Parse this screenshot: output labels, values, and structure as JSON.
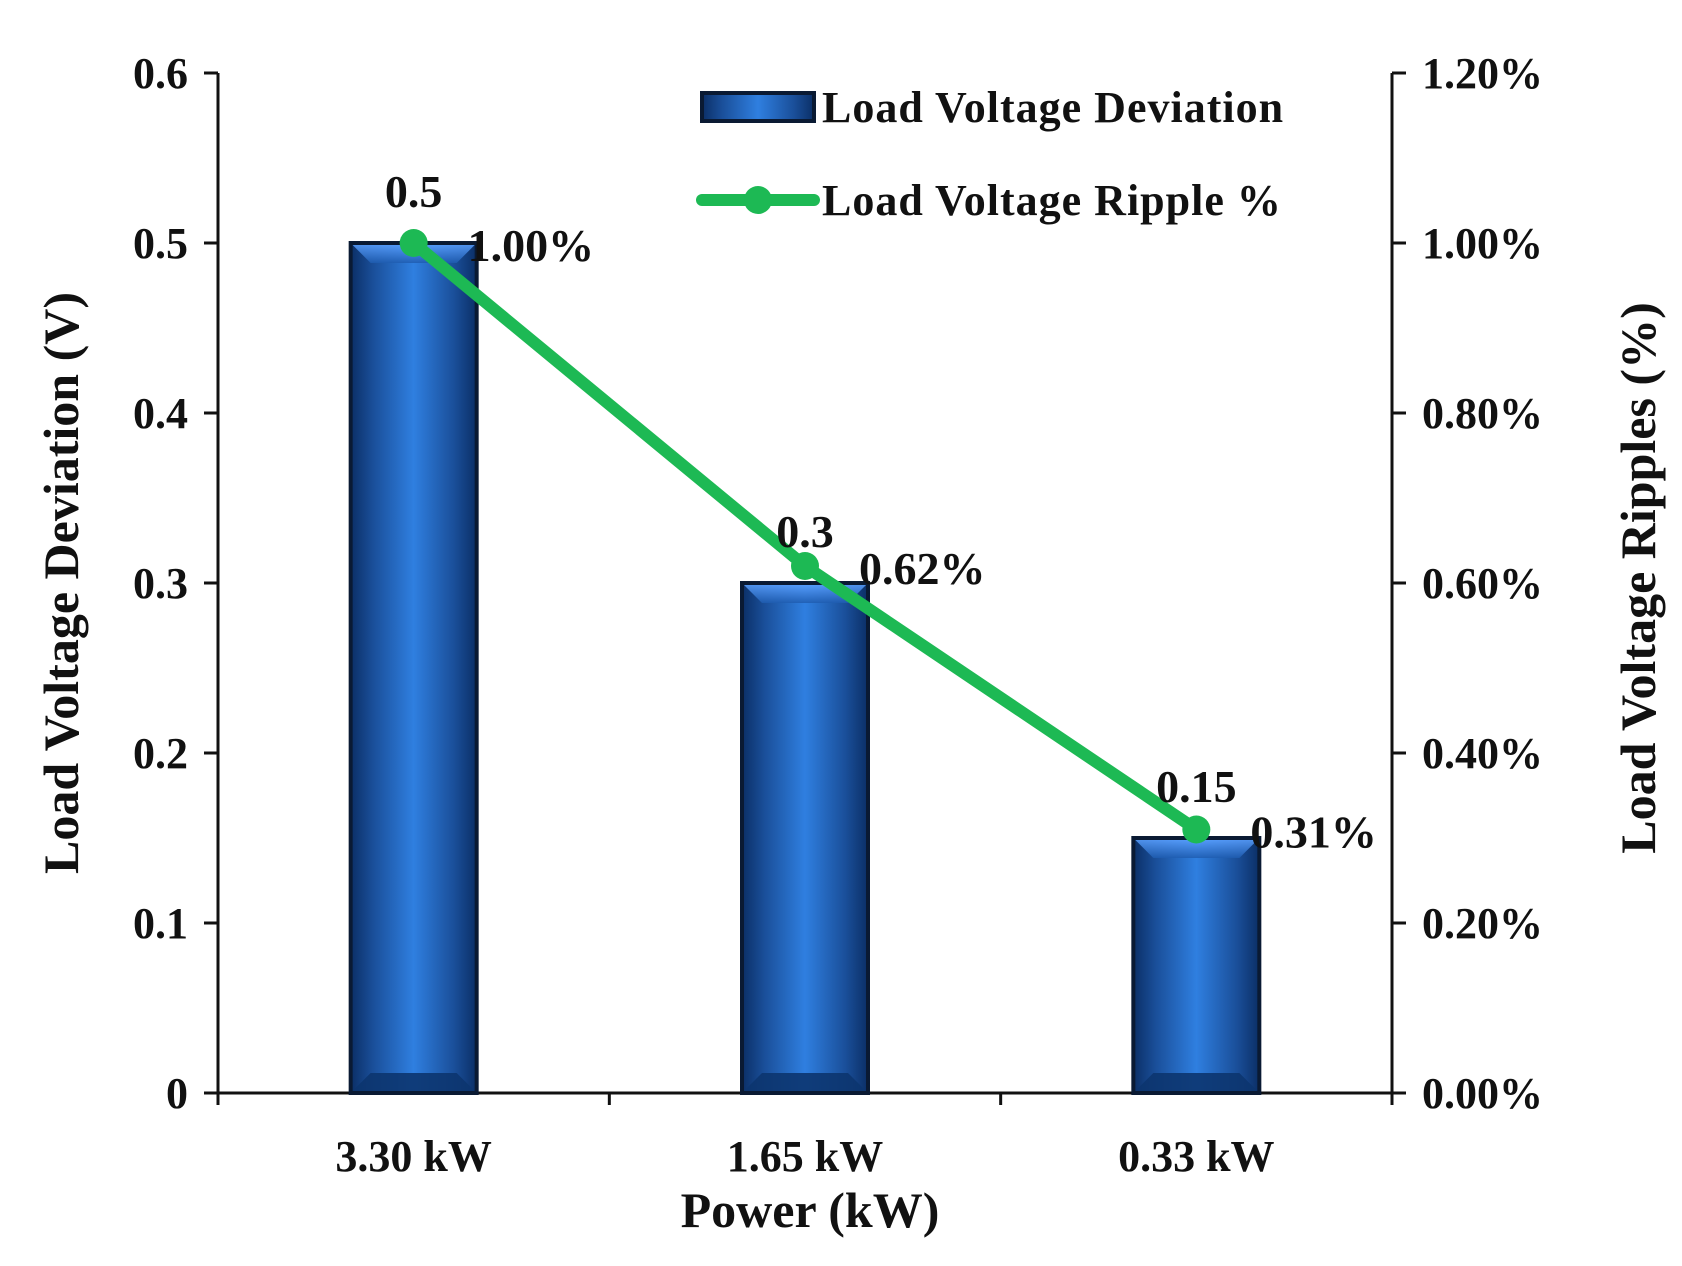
{
  "chart_data": {
    "type": "bar",
    "categories": [
      "3.30 kW",
      "1.65 kW",
      "0.33 kW"
    ],
    "series": [
      {
        "name": "Load Voltage Deviation",
        "type": "bar",
        "axis": "left",
        "values": [
          0.5,
          0.3,
          0.15
        ],
        "labels": [
          "0.5",
          "0.3",
          "0.15"
        ],
        "color": "#1f5fb8"
      },
      {
        "name": "Load Voltage Ripple %",
        "type": "line",
        "axis": "right",
        "values": [
          1.0,
          0.62,
          0.31
        ],
        "labels": [
          "1.00%",
          "0.62%",
          "0.31%"
        ],
        "color": "#1db954"
      }
    ],
    "xlabel": "Power (kW)",
    "ylabel": "Load Voltage Deviation (V)",
    "y2label": "Load Voltage Ripples (%)",
    "ylim": [
      0,
      0.6
    ],
    "y2lim": [
      0,
      1.2
    ],
    "yticks": [
      "0",
      "0.1",
      "0.2",
      "0.3",
      "0.4",
      "0.5",
      "0.6"
    ],
    "y2ticks": [
      "0.00%",
      "0.20%",
      "0.40%",
      "0.60%",
      "0.80%",
      "1.00%",
      "1.20%"
    ],
    "legend": "top-right",
    "grid": false
  }
}
